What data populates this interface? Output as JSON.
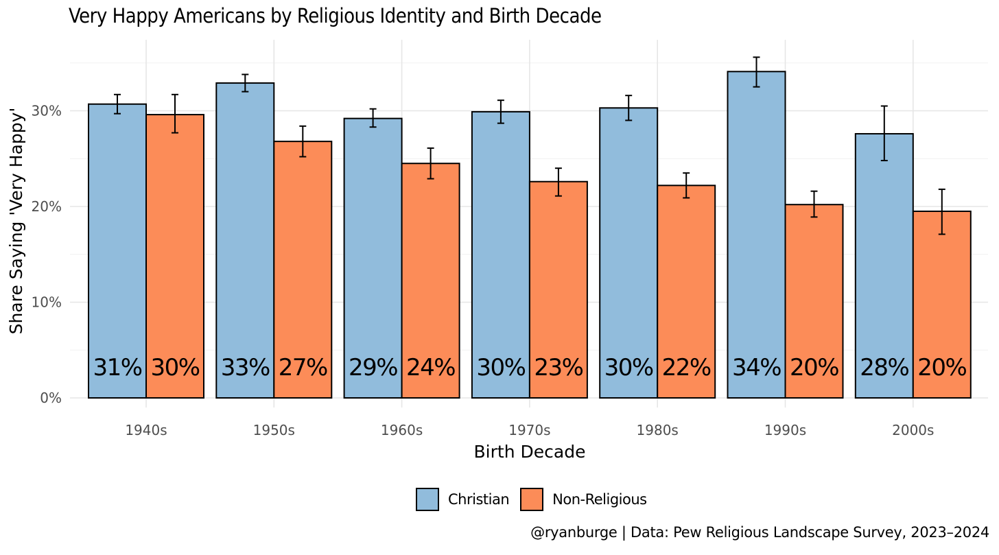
{
  "chart_data": {
    "type": "bar",
    "title": "Very Happy Americans by Religious Identity and Birth Decade",
    "xlabel": "Birth Decade",
    "ylabel": "Share Saying 'Very Happy'",
    "caption": "@ryanburge | Data: Pew Religious Landscape Survey, 2023–2024",
    "categories": [
      "1940s",
      "1950s",
      "1960s",
      "1970s",
      "1980s",
      "1990s",
      "2000s"
    ],
    "ylim": [
      0,
      0.36
    ],
    "yticks": [
      0,
      0.1,
      0.2,
      0.3
    ],
    "ytick_labels": [
      "0%",
      "10%",
      "20%",
      "30%"
    ],
    "grid": true,
    "legend_position": "bottom",
    "series": [
      {
        "name": "Christian",
        "color": "#91bcdc",
        "values": [
          0.307,
          0.329,
          0.292,
          0.299,
          0.303,
          0.341,
          0.276
        ],
        "error_low": [
          0.297,
          0.32,
          0.283,
          0.287,
          0.29,
          0.325,
          0.248
        ],
        "error_high": [
          0.317,
          0.338,
          0.302,
          0.311,
          0.316,
          0.356,
          0.305
        ],
        "labels": [
          "31%",
          "33%",
          "29%",
          "30%",
          "30%",
          "34%",
          "28%"
        ]
      },
      {
        "name": "Non-Religious",
        "color": "#fc8c58",
        "values": [
          0.296,
          0.268,
          0.245,
          0.226,
          0.222,
          0.202,
          0.195
        ],
        "error_low": [
          0.277,
          0.252,
          0.229,
          0.211,
          0.209,
          0.189,
          0.171
        ],
        "error_high": [
          0.317,
          0.284,
          0.261,
          0.24,
          0.235,
          0.216,
          0.218
        ],
        "labels": [
          "30%",
          "27%",
          "24%",
          "23%",
          "22%",
          "20%",
          "20%"
        ]
      }
    ]
  }
}
